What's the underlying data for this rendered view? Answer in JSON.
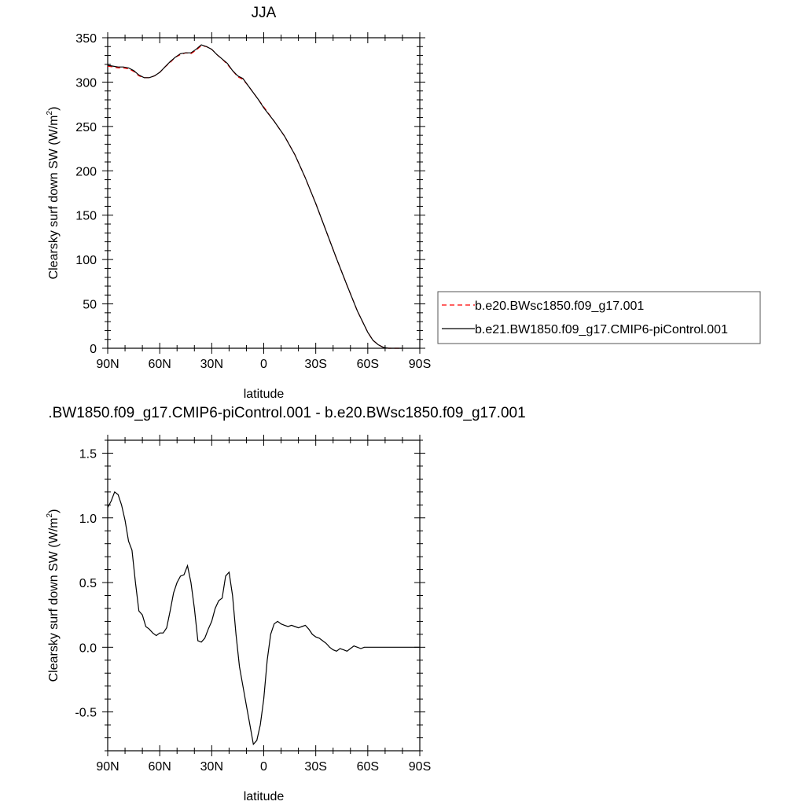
{
  "chart_data": [
    {
      "type": "line",
      "title": "JJA",
      "xlabel": "latitude",
      "ylabel": "Clearsky surf down SW (W/m",
      "ylabel_sup": "2",
      "ylabel_end": ")",
      "xlim": [
        90,
        -90
      ],
      "ylim": [
        0,
        350
      ],
      "x_ticks": [
        90,
        60,
        30,
        0,
        -30,
        -60,
        -90
      ],
      "x_tick_labels": [
        "90N",
        "60N",
        "30N",
        "0",
        "30S",
        "60S",
        "90S"
      ],
      "y_ticks": [
        0,
        50,
        100,
        150,
        200,
        250,
        300,
        350
      ],
      "y_tick_labels": [
        "0",
        "50",
        "100",
        "150",
        "200",
        "250",
        "300",
        "350"
      ],
      "legend": {
        "entries": [
          {
            "name": "b.e20.BWsc1850.f09_g17.001",
            "color": "#ff0000",
            "dash": "dashed"
          },
          {
            "name": "b.e21.BW1850.f09_g17.CMIP6-piControl.001",
            "color": "#000000",
            "dash": "solid"
          }
        ]
      },
      "series": [
        {
          "name": "b.e20.BWsc1850.f09_g17.001",
          "color": "#ff0000",
          "x": [
            90,
            87,
            84,
            81,
            78,
            75,
            72,
            69,
            66,
            63,
            60,
            57,
            54,
            51,
            48,
            45,
            42,
            39,
            36,
            33,
            30,
            27,
            24,
            21,
            18,
            15,
            12,
            9,
            6,
            3,
            0,
            -6,
            -12,
            -18,
            -24,
            -30,
            -36,
            -42,
            -48,
            -54,
            -60,
            -63,
            -66,
            -69,
            -72,
            -75,
            -78,
            -80
          ],
          "y": [
            318,
            317,
            316,
            316,
            315,
            312,
            307,
            305,
            305,
            307,
            311,
            317,
            322,
            328,
            331,
            333,
            332,
            336,
            341,
            340,
            337,
            331,
            326,
            320,
            313,
            306,
            303,
            296,
            288,
            280,
            272,
            256,
            239,
            218,
            192,
            163,
            132,
            101,
            71,
            42,
            18,
            9,
            4,
            1,
            0,
            0,
            0,
            0
          ]
        },
        {
          "name": "b.e21.BW1850.f09_g17.CMIP6-piControl.001",
          "color": "#000000",
          "x": [
            90,
            87,
            84,
            81,
            78,
            75,
            72,
            69,
            66,
            63,
            60,
            57,
            54,
            51,
            48,
            45,
            42,
            39,
            36,
            33,
            30,
            27,
            24,
            21,
            18,
            15,
            12,
            9,
            6,
            3,
            0,
            -6,
            -12,
            -18,
            -24,
            -30,
            -36,
            -42,
            -48,
            -54,
            -60,
            -63,
            -66,
            -69,
            -72,
            -75,
            -78,
            -80
          ],
          "y": [
            319,
            318,
            317,
            317,
            316,
            313,
            308,
            305,
            305,
            307,
            311,
            317,
            323,
            328,
            332,
            333,
            333,
            337,
            342,
            340,
            337,
            331,
            326,
            321,
            313,
            307,
            304,
            296,
            288,
            280,
            271,
            256,
            239,
            218,
            192,
            163,
            132,
            101,
            71,
            42,
            18,
            9,
            4,
            1,
            0,
            0,
            0,
            0
          ]
        }
      ]
    },
    {
      "type": "line",
      "title": ".BW1850.f09_g17.CMIP6-piControl.001 - b.e20.BWsc1850.f09_g17.001",
      "xlabel": "latitude",
      "ylabel": "Clearsky surf down SW (W/m",
      "ylabel_sup": "2",
      "ylabel_end": ")",
      "xlim": [
        90,
        -90
      ],
      "ylim": [
        -0.8,
        1.6
      ],
      "x_ticks": [
        90,
        60,
        30,
        0,
        -30,
        -60,
        -90
      ],
      "x_tick_labels": [
        "90N",
        "60N",
        "30N",
        "0",
        "30S",
        "60S",
        "90S"
      ],
      "y_ticks": [
        -0.5,
        0.0,
        0.5,
        1.0,
        1.5
      ],
      "y_tick_labels": [
        "-0.5",
        "0.0",
        "0.5",
        "1.0",
        "1.5"
      ],
      "series": [
        {
          "name": "",
          "color": "#000000",
          "x": [
            90,
            88,
            86,
            84,
            82,
            80,
            78,
            76,
            74,
            72,
            70,
            68,
            66,
            64,
            62,
            60,
            58,
            56,
            54,
            52,
            50,
            48,
            46,
            44,
            42,
            40,
            38,
            36,
            34,
            32,
            30,
            28,
            26,
            24,
            22,
            20,
            18,
            16,
            14,
            12,
            10,
            8,
            6,
            4,
            2,
            0,
            -2,
            -4,
            -6,
            -8,
            -10,
            -12,
            -14,
            -16,
            -18,
            -20,
            -22,
            -24,
            -26,
            -28,
            -30,
            -32,
            -34,
            -36,
            -38,
            -40,
            -42,
            -44,
            -46,
            -48,
            -50,
            -52,
            -54,
            -56,
            -58,
            -60,
            -62,
            -64,
            -66,
            -68,
            -70,
            -72,
            -75,
            -80,
            -85,
            -90
          ],
          "y": [
            1.08,
            1.13,
            1.2,
            1.18,
            1.1,
            0.98,
            0.82,
            0.75,
            0.5,
            0.28,
            0.25,
            0.16,
            0.14,
            0.11,
            0.09,
            0.11,
            0.11,
            0.15,
            0.28,
            0.42,
            0.5,
            0.55,
            0.56,
            0.63,
            0.5,
            0.3,
            0.05,
            0.04,
            0.07,
            0.14,
            0.2,
            0.3,
            0.36,
            0.38,
            0.55,
            0.58,
            0.4,
            0.1,
            -0.15,
            -0.3,
            -0.45,
            -0.6,
            -0.75,
            -0.72,
            -0.6,
            -0.4,
            -0.1,
            0.1,
            0.18,
            0.2,
            0.18,
            0.17,
            0.16,
            0.17,
            0.16,
            0.15,
            0.16,
            0.17,
            0.14,
            0.1,
            0.08,
            0.07,
            0.05,
            0.03,
            0.0,
            -0.02,
            -0.03,
            -0.01,
            -0.02,
            -0.03,
            -0.01,
            0.01,
            0.0,
            -0.01,
            0.0,
            0.0,
            0.0,
            0.0,
            0.0,
            0.0,
            0.0,
            0.0,
            0.0,
            0.0,
            0.0,
            0.0
          ]
        }
      ]
    }
  ]
}
